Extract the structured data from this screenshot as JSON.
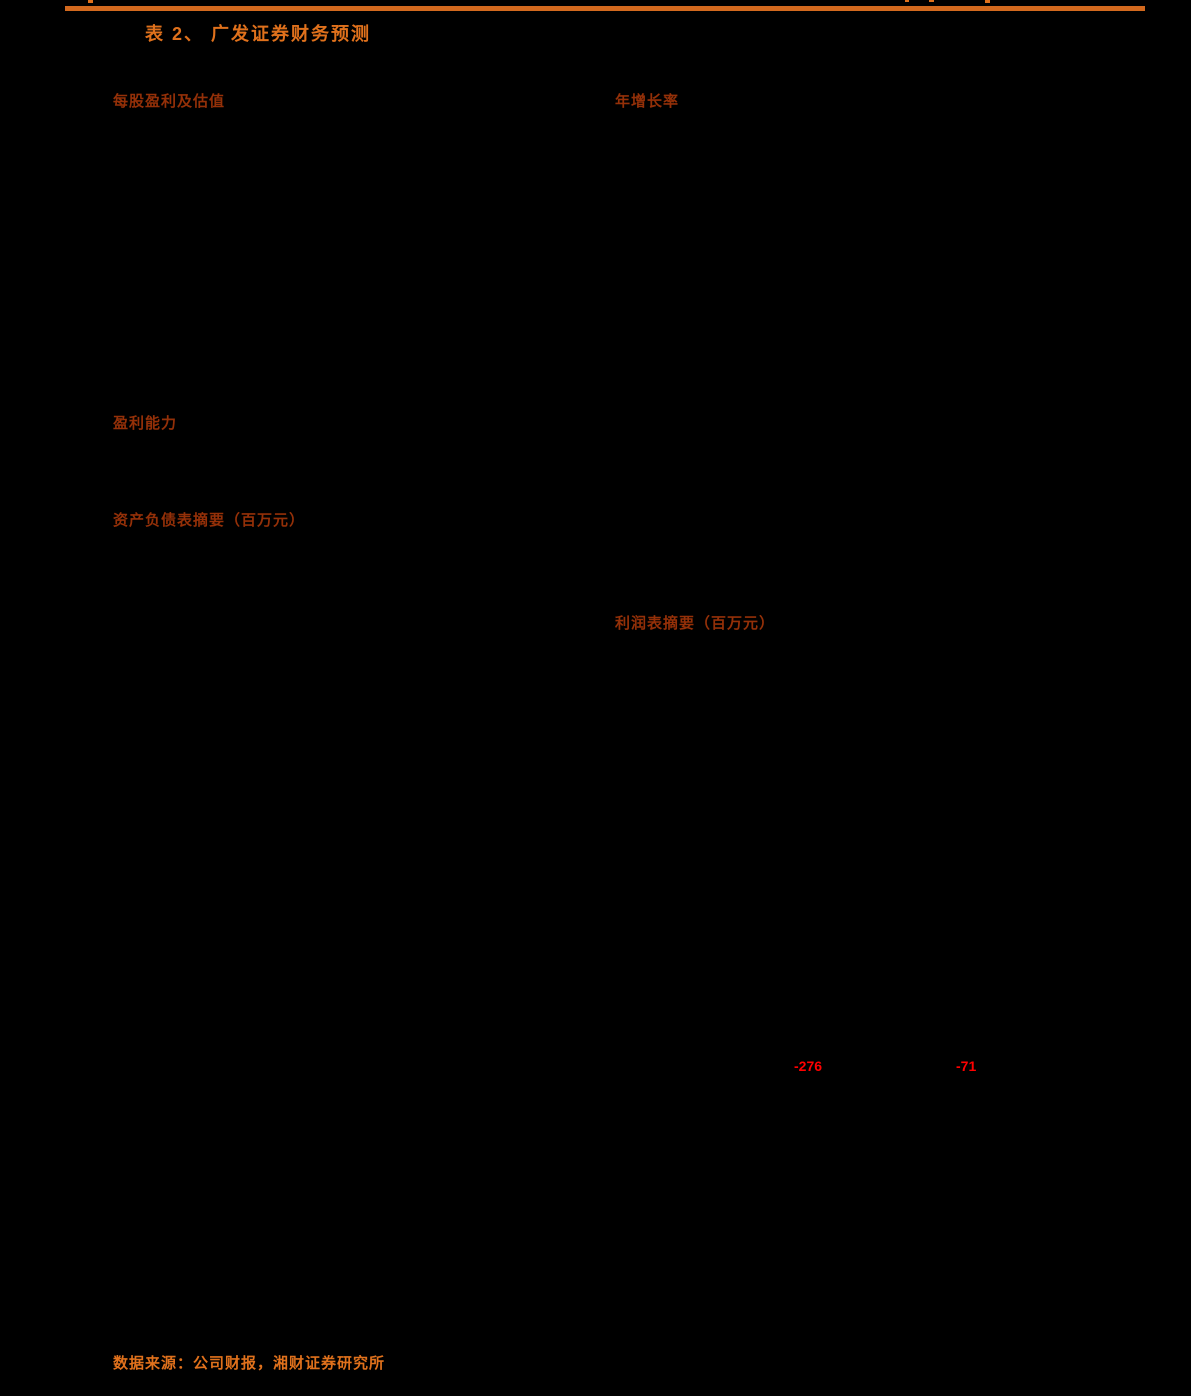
{
  "page": {
    "title": "表 2、 广发证券财务预测",
    "source_note": "数据来源：公司财报，湘财证券研究所"
  },
  "sections": {
    "eps_valuation": "每股盈利及估值",
    "growth_rate": "年增长率",
    "profitability": "盈利能力",
    "balance_sheet": "资产负债表摘要（百万元）",
    "income_statement": "利润表摘要（百万元）"
  },
  "red_values": [
    {
      "text": "-276"
    },
    {
      "text": "-71"
    }
  ],
  "colors": {
    "background": "#000000",
    "rule_orange": "#D2691E",
    "title_orange": "#E0711C",
    "section_red": "#943008",
    "value_red": "#FF0000"
  }
}
